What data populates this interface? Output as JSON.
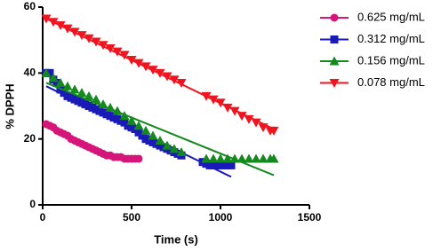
{
  "chart_data": {
    "type": "scatter",
    "xlabel": "Time (s)",
    "ylabel": "% DPPH",
    "xlim": [
      0,
      1500
    ],
    "xticks": [
      0,
      500,
      1000,
      1500
    ],
    "ylim": [
      0,
      60
    ],
    "yticks": [
      0,
      20,
      40,
      60
    ],
    "legend": "right",
    "series": [
      {
        "name": "0.625 mg/mL",
        "color": "#d6157a",
        "marker": "circle",
        "x": [
          20,
          40,
          60,
          80,
          100,
          120,
          140,
          160,
          180,
          200,
          220,
          240,
          260,
          280,
          300,
          320,
          340,
          360,
          380,
          400,
          420,
          440,
          460,
          480,
          500,
          520,
          540
        ],
        "values": [
          24.5,
          24,
          23.5,
          22.5,
          22,
          21.5,
          21,
          20,
          19.5,
          19,
          18.5,
          18,
          17.5,
          17,
          16.5,
          16,
          15.5,
          15,
          15,
          14.5,
          14.5,
          14.5,
          14,
          14,
          14,
          14,
          14
        ],
        "fit": {
          "x": [
            20,
            150,
            300,
            450,
            540
          ],
          "values": [
            24.5,
            20.5,
            16.5,
            14.5,
            14
          ]
        }
      },
      {
        "name": "0.312 mg/mL",
        "color": "#1a1ab8",
        "marker": "square",
        "x": [
          20,
          40,
          60,
          80,
          100,
          120,
          140,
          160,
          180,
          200,
          220,
          240,
          260,
          280,
          300,
          320,
          340,
          360,
          380,
          400,
          420,
          440,
          460,
          480,
          500,
          520,
          540,
          560,
          580,
          600,
          620,
          640,
          660,
          680,
          700,
          720,
          740,
          760,
          780,
          900,
          920,
          940,
          960,
          980,
          1000,
          1020,
          1040,
          1060
        ],
        "values": [
          40,
          40,
          38,
          37,
          35,
          34,
          33,
          32.5,
          32,
          31.5,
          31,
          30.5,
          30,
          29.5,
          29,
          28.5,
          28,
          27.5,
          27,
          26.5,
          26,
          25.5,
          25,
          24,
          23.5,
          23,
          22,
          21,
          20,
          19.5,
          19,
          18.5,
          18,
          17.5,
          17,
          16.5,
          16,
          15.5,
          15,
          13,
          12.5,
          12,
          12,
          12,
          12,
          12,
          12,
          12
        ],
        "fit": {
          "x": [
            20,
            1060
          ],
          "values": [
            36,
            8.5
          ]
        }
      },
      {
        "name": "0.156 mg/mL",
        "color": "#14891e",
        "marker": "triangle-up",
        "x": [
          20,
          60,
          100,
          140,
          180,
          220,
          260,
          300,
          340,
          380,
          420,
          460,
          500,
          540,
          580,
          620,
          660,
          700,
          740,
          780,
          920,
          960,
          1000,
          1040,
          1080,
          1120,
          1160,
          1200,
          1240,
          1280,
          1300
        ],
        "values": [
          40,
          38.5,
          37,
          36,
          35,
          34,
          33,
          32,
          30.5,
          29.5,
          28.5,
          27,
          25.5,
          24,
          22.5,
          21,
          19.5,
          18,
          17,
          16,
          14,
          14,
          14,
          14,
          14,
          14,
          14,
          14,
          14,
          14,
          14
        ],
        "fit": {
          "x": [
            20,
            1300
          ],
          "values": [
            37,
            9
          ]
        }
      },
      {
        "name": "0.078 mg/mL",
        "color": "#f0141e",
        "marker": "triangle-down",
        "x": [
          20,
          60,
          100,
          140,
          180,
          220,
          260,
          300,
          340,
          380,
          420,
          460,
          500,
          540,
          580,
          620,
          660,
          700,
          740,
          780,
          920,
          960,
          1000,
          1040,
          1080,
          1120,
          1160,
          1200,
          1240,
          1280,
          1300
        ],
        "values": [
          56.5,
          55.5,
          54.5,
          53.5,
          52.5,
          51.5,
          50.5,
          49.5,
          48.5,
          47.5,
          46.5,
          45.5,
          44,
          43,
          42,
          41,
          40,
          39,
          38,
          37,
          33,
          32,
          31,
          29.5,
          28.5,
          27,
          26,
          25,
          23.5,
          22.5,
          22.5
        ],
        "fit": {
          "x": [
            0,
            1300
          ],
          "values": [
            57,
            23
          ]
        }
      }
    ]
  }
}
